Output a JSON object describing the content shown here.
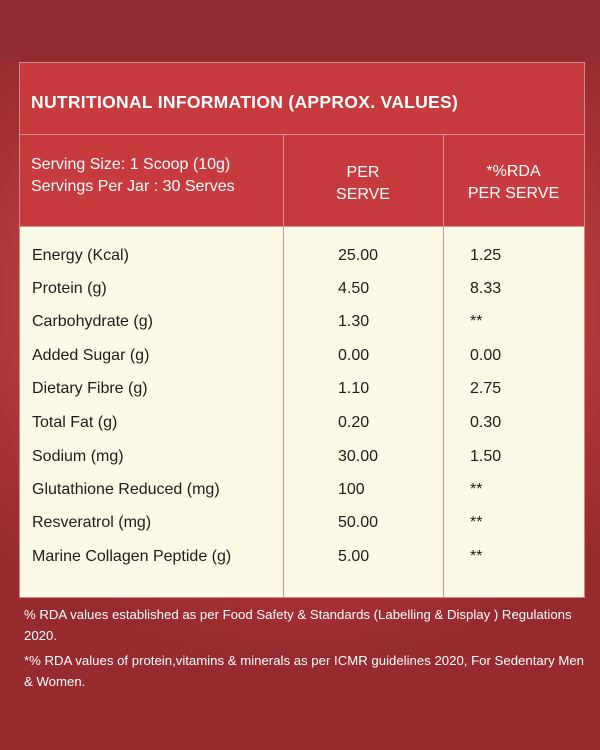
{
  "title": "NUTRITIONAL INFORMATION (APPROX. VALUES)",
  "header": {
    "serving_size": "Serving Size: 1 Scoop (10g)",
    "servings_per_jar": "Servings Per Jar : 30  Serves",
    "col_per_line1": "PER",
    "col_per_line2": "SERVE",
    "col_rda_line1": "*%RDA",
    "col_rda_line2": "PER SERVE"
  },
  "rows": [
    {
      "name": "Energy (Kcal)",
      "per_serve": "25.00",
      "rda": "1.25"
    },
    {
      "name": "Protein (g)",
      "per_serve": "4.50",
      "rda": "8.33"
    },
    {
      "name": "Carbohydrate (g)",
      "per_serve": "1.30",
      "rda": "**"
    },
    {
      "name": "Added Sugar (g)",
      "per_serve": "0.00",
      "rda": "0.00"
    },
    {
      "name": "Dietary Fibre (g)",
      "per_serve": "1.10",
      "rda": "2.75"
    },
    {
      "name": "Total Fat (g)",
      "per_serve": "0.20",
      "rda": "0.30"
    },
    {
      "name": "Sodium (mg)",
      "per_serve": "30.00",
      "rda": "1.50"
    },
    {
      "name": "Glutathione Reduced (mg)",
      "per_serve": "100",
      "rda": "**"
    },
    {
      "name": "Resveratrol (mg)",
      "per_serve": "50.00",
      "rda": "**"
    },
    {
      "name": "Marine Collagen Peptide (g)",
      "per_serve": "5.00",
      "rda": "**"
    }
  ],
  "footnotes": {
    "note1": "% RDA values established as per Food Safety & Standards (Labelling & Display ) Regulations 2020.",
    "note2": "*% RDA values of protein,vitamins & minerals as per ICMR guidelines 2020, For Sedentary Men & Women."
  },
  "colors": {
    "header_bg": "#c73b3e",
    "table_body_bg": "#fbfae6",
    "background": "#a83135"
  }
}
